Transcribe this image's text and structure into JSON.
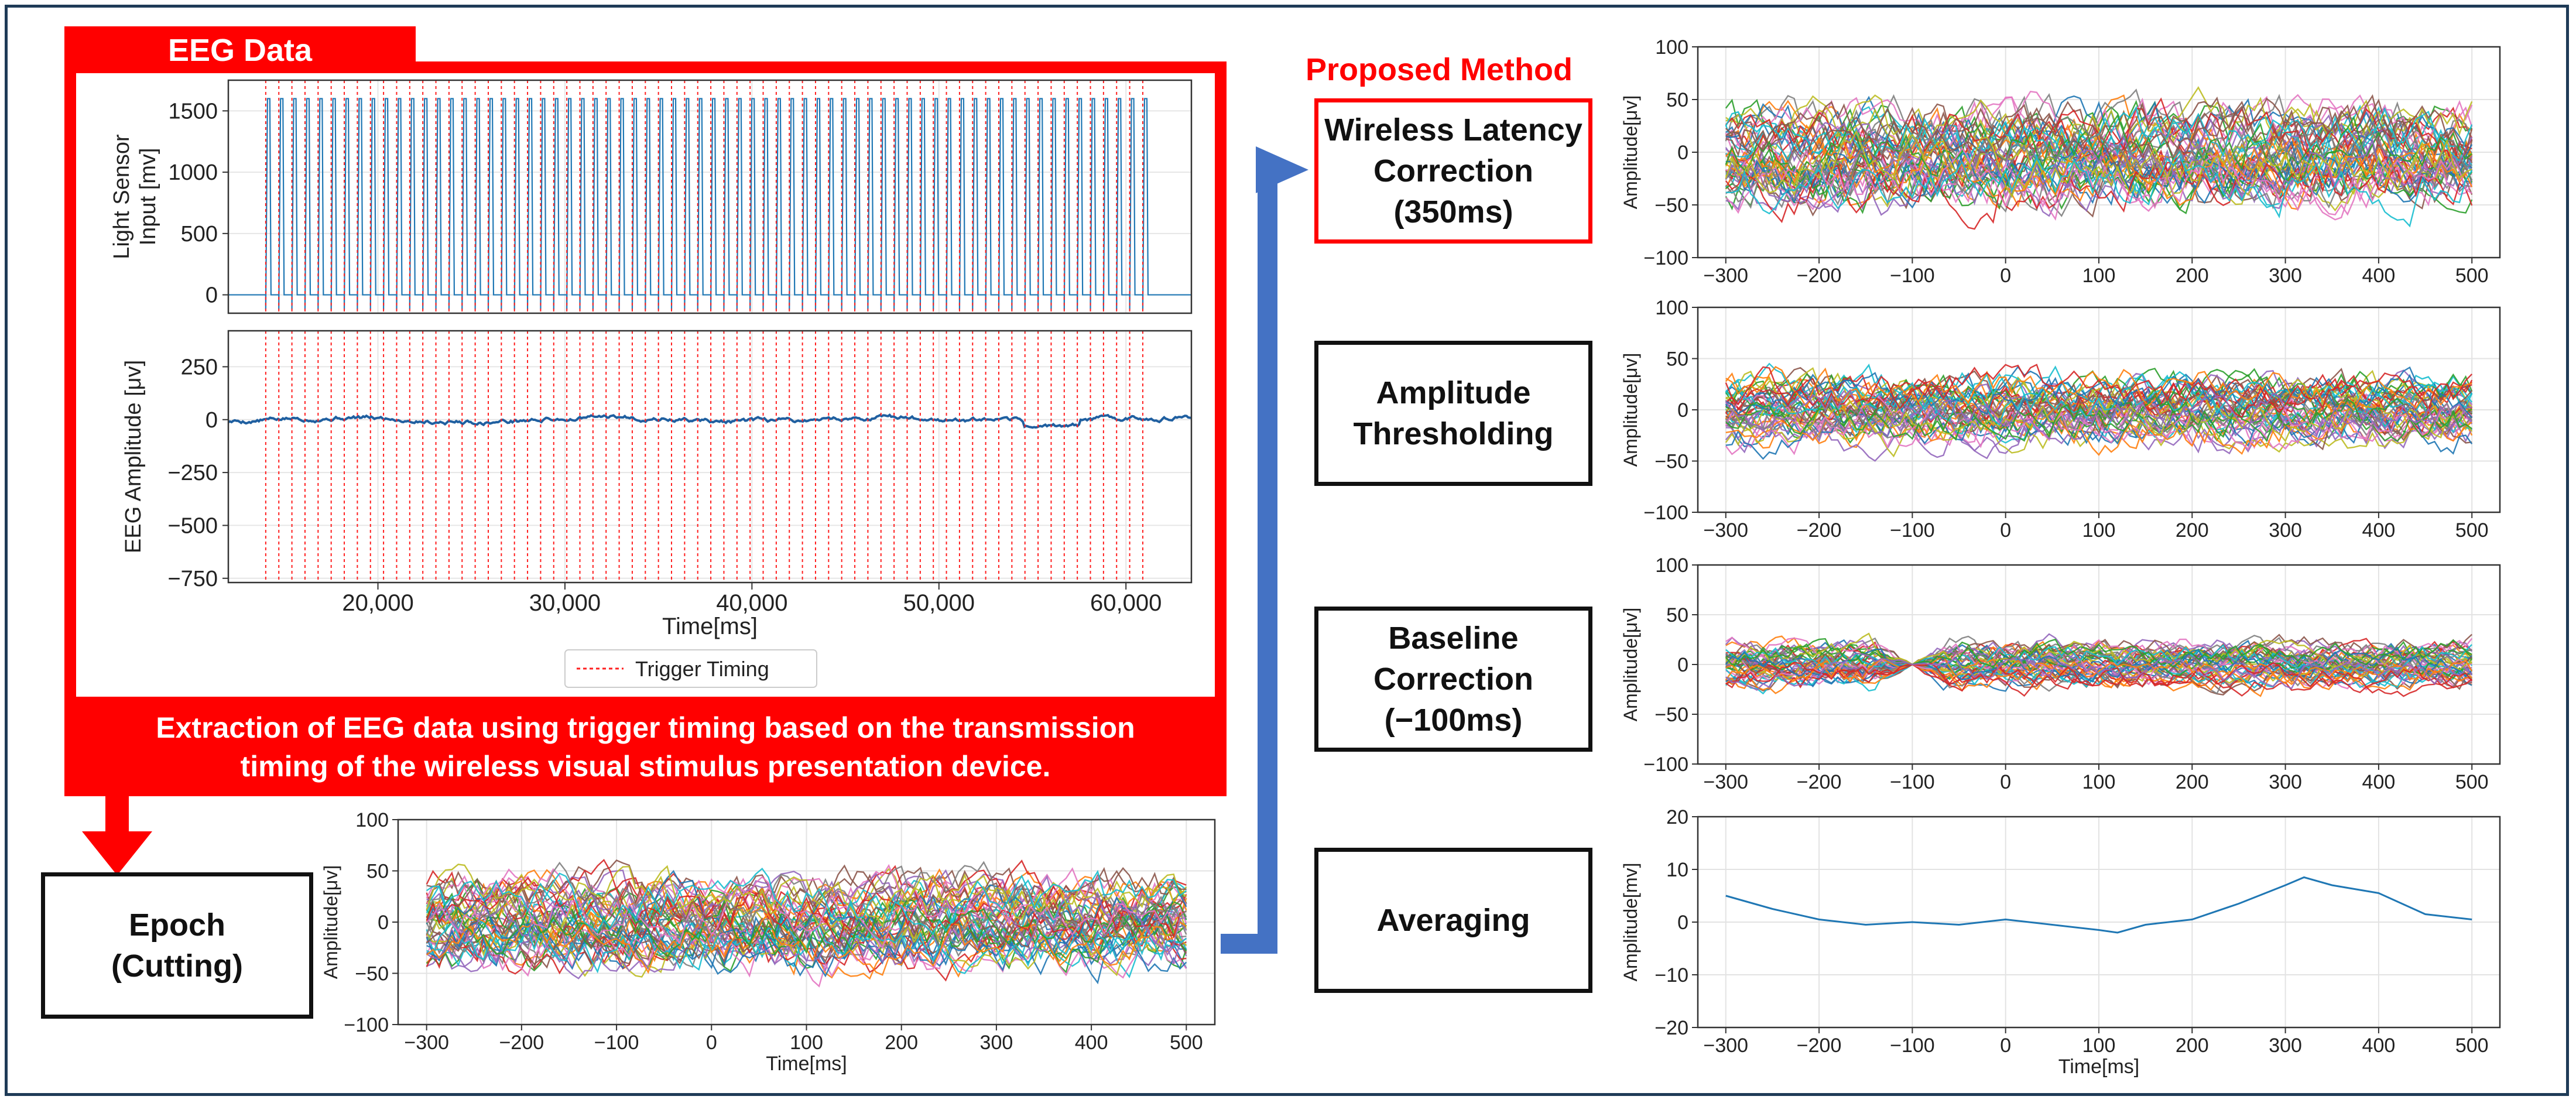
{
  "eeg_panel": {
    "tab_label": "EEG Data",
    "top_ylabel_line1": "Light Sensor",
    "top_ylabel_line2": "Input [mv]",
    "top_yticks": [
      "1500",
      "1000",
      "500",
      "0"
    ],
    "bottom_ylabel": "EEG Amplitude [μv]",
    "bottom_yticks": [
      "250",
      "0",
      "−250",
      "−500",
      "−750"
    ],
    "xticks": [
      "20,000",
      "30,000",
      "40,000",
      "50,000",
      "60,000"
    ],
    "xlabel": "Time[ms]",
    "legend": "Trigger Timing",
    "caption_line1": "Extraction of EEG data using trigger timing based on the transmission",
    "caption_line2": "timing of the wireless visual stimulus presentation device."
  },
  "epoch_box": {
    "label": "Epoch\n(Cutting)"
  },
  "proposed_method": {
    "title": "Proposed Method"
  },
  "steps": [
    {
      "label": "Wireless Latency\nCorrection\n(350ms)"
    },
    {
      "label": "Amplitude\nThresholding"
    },
    {
      "label": "Baseline\nCorrection\n(−100ms)"
    },
    {
      "label": "Averaging"
    }
  ],
  "chart_data": [
    {
      "id": "eeg_trigger_plot",
      "type": "line",
      "title": "",
      "xlabel": "Time[ms]",
      "xlim": [
        12000,
        63500
      ],
      "xticks": [
        20000,
        30000,
        40000,
        50000,
        60000
      ],
      "trigger_interval_ms": 700,
      "trigger_start_ms": 14000,
      "trigger_end_ms": 61500,
      "panels": [
        {
          "ylabel": "Light Sensor Input [mv]",
          "ylim": [
            -150,
            1750
          ],
          "yticks": [
            0,
            500,
            1000,
            1500
          ],
          "series": [
            {
              "name": "Light Sensor",
              "pulse_high": 1600,
              "baseline": 0
            }
          ]
        },
        {
          "ylabel": "EEG Amplitude [μv]",
          "ylim": [
            -770,
            420
          ],
          "yticks": [
            -750,
            -500,
            -250,
            0,
            250
          ],
          "series": [
            {
              "name": "EEG",
              "baseline": 0
            }
          ]
        }
      ],
      "legend": [
        "Trigger Timing"
      ]
    },
    {
      "id": "epoch_plot",
      "type": "line",
      "title": "",
      "xlabel": "Time[ms]",
      "ylabel": "Amplitude[μv]",
      "xlim": [
        -330,
        530
      ],
      "ylim": [
        -100,
        100
      ],
      "xticks": [
        -300,
        -200,
        -100,
        0,
        100,
        200,
        300,
        400,
        500
      ],
      "yticks": [
        -100,
        -50,
        0,
        50,
        100
      ],
      "x_start": -300,
      "x_end": 500,
      "n_traces": 50,
      "trace_spread_uv": 30
    },
    {
      "id": "latency_corrected_plot",
      "type": "line",
      "title": "",
      "xlabel": "",
      "ylabel": "Amplitude[μv]",
      "xlim": [
        -330,
        530
      ],
      "ylim": [
        -100,
        100
      ],
      "xticks": [
        -300,
        -200,
        -100,
        0,
        100,
        200,
        300,
        400,
        500
      ],
      "yticks": [
        -100,
        -50,
        0,
        50,
        100
      ],
      "x_start": -300,
      "x_end": 500,
      "n_traces": 50,
      "trace_spread_uv": 32
    },
    {
      "id": "thresholded_plot",
      "type": "line",
      "title": "",
      "xlabel": "",
      "ylabel": "Amplitude[μv]",
      "xlim": [
        -330,
        530
      ],
      "ylim": [
        -100,
        100
      ],
      "xticks": [
        -300,
        -200,
        -100,
        0,
        100,
        200,
        300,
        400,
        500
      ],
      "yticks": [
        -100,
        -50,
        0,
        50,
        100
      ],
      "x_start": -300,
      "x_end": 500,
      "n_traces": 45,
      "trace_spread_uv": 24
    },
    {
      "id": "baseline_corrected_plot",
      "type": "line",
      "title": "",
      "xlabel": "",
      "ylabel": "Amplitude[μv]",
      "xlim": [
        -330,
        530
      ],
      "ylim": [
        -100,
        100
      ],
      "xticks": [
        -300,
        -200,
        -100,
        0,
        100,
        200,
        300,
        400,
        500
      ],
      "yticks": [
        -100,
        -50,
        0,
        50,
        100
      ],
      "x_start": -300,
      "x_end": 500,
      "n_traces": 45,
      "trace_spread_uv": 16,
      "baseline_point_ms": -100
    },
    {
      "id": "averaged_plot",
      "type": "line",
      "title": "",
      "xlabel": "Time[ms]",
      "ylabel": "Amplitude[mv]",
      "xlim": [
        -330,
        530
      ],
      "ylim": [
        -20,
        20
      ],
      "xticks": [
        -300,
        -200,
        -100,
        0,
        100,
        200,
        300,
        400,
        500
      ],
      "yticks": [
        -20,
        -10,
        0,
        10,
        20
      ],
      "series": [
        {
          "name": "Average",
          "x": [
            -300,
            -250,
            -200,
            -150,
            -100,
            -50,
            0,
            50,
            100,
            120,
            150,
            200,
            250,
            300,
            320,
            350,
            400,
            450,
            500
          ],
          "y": [
            5,
            2.5,
            0.5,
            -0.5,
            0,
            -0.5,
            0.5,
            -0.5,
            -1.5,
            -2,
            -0.5,
            0.5,
            3.5,
            7,
            8.5,
            7,
            5.5,
            1.5,
            0.5
          ]
        }
      ]
    }
  ],
  "colors": {
    "accent_red": "#ff0000",
    "arrow_blue": "#4472c4",
    "trace_palette": [
      "#1f77b4",
      "#ff7f0e",
      "#2ca02c",
      "#d62728",
      "#9467bd",
      "#8c564b",
      "#e377c2",
      "#7f7f7f",
      "#bcbd22",
      "#17becf"
    ]
  }
}
